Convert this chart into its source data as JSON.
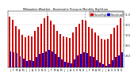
{
  "title": "Milwaukee Weather - Barometric Pressure Monthly High/Low",
  "months": [
    "J",
    "F",
    "M",
    "A",
    "M",
    "J",
    "J",
    "A",
    "S",
    "O",
    "N",
    "D",
    "J",
    "F",
    "M",
    "A",
    "M",
    "J",
    "J",
    "A",
    "S",
    "O",
    "N",
    "D",
    "J",
    "F",
    "M",
    "A",
    "M",
    "J",
    "J",
    "A",
    "S",
    "O",
    "N",
    "D"
  ],
  "highs": [
    30.87,
    30.72,
    30.43,
    30.26,
    30.01,
    29.87,
    29.94,
    29.92,
    30.18,
    30.4,
    30.55,
    30.82,
    30.92,
    30.68,
    30.5,
    30.2,
    30.05,
    29.9,
    29.88,
    29.85,
    30.1,
    30.38,
    30.52,
    30.75,
    30.7,
    30.4,
    30.3,
    30.1,
    29.95,
    29.8,
    29.78,
    29.82,
    30.05,
    30.35,
    30.48,
    30.8
  ],
  "lows": [
    29.2,
    29.15,
    29.1,
    28.95,
    28.85,
    28.7,
    28.75,
    28.72,
    28.9,
    29.05,
    29.1,
    29.2,
    29.25,
    29.18,
    29.05,
    28.9,
    28.8,
    28.68,
    28.65,
    28.6,
    28.8,
    28.98,
    29.08,
    29.15,
    29.1,
    28.95,
    28.9,
    28.75,
    28.65,
    28.55,
    28.5,
    28.55,
    28.75,
    28.9,
    29.0,
    29.15
  ],
  "high_color": "#cc0000",
  "low_color": "#0000cc",
  "dashed_indices": [
    11.5,
    23.5
  ],
  "ylim_low": 28.4,
  "ylim_high": 31.15,
  "baseline": 28.4,
  "background_color": "#ffffff",
  "legend_high": "Record High",
  "legend_low": "Record Low",
  "ytick_values": [
    29.0,
    29.5,
    30.0,
    30.5,
    31.0
  ],
  "ytick_labels": [
    "29.0",
    "29.5",
    "30.0",
    "30.5",
    "31.0"
  ]
}
